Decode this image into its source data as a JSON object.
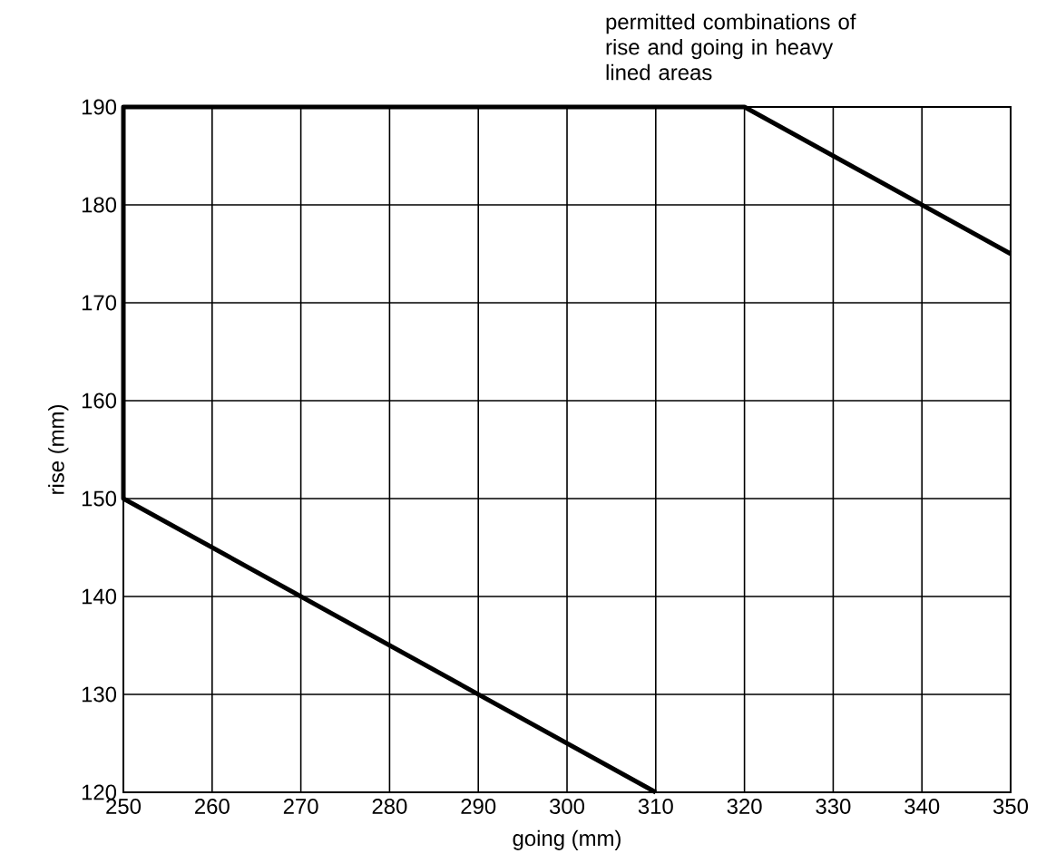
{
  "chart_data": {
    "type": "line",
    "xlabel": "going (mm)",
    "ylabel": "rise (mm)",
    "annotations": [
      "permitted combinations of rise and going in heavy lined areas"
    ],
    "x": [
      310,
      250,
      250,
      320,
      350
    ],
    "series": [
      {
        "color": "#000000",
        "values": [
          120,
          150,
          190,
          190,
          175
        ]
      }
    ],
    "xlim": [
      250,
      350
    ],
    "xticks": [
      250,
      260,
      270,
      280,
      290,
      300,
      310,
      320,
      330,
      340,
      350
    ],
    "ylim": [
      120,
      190
    ],
    "yticks": [
      120,
      130,
      140,
      150,
      160,
      170,
      180,
      190
    ],
    "grid": true,
    "marker": "none",
    "line_style": "solid"
  }
}
